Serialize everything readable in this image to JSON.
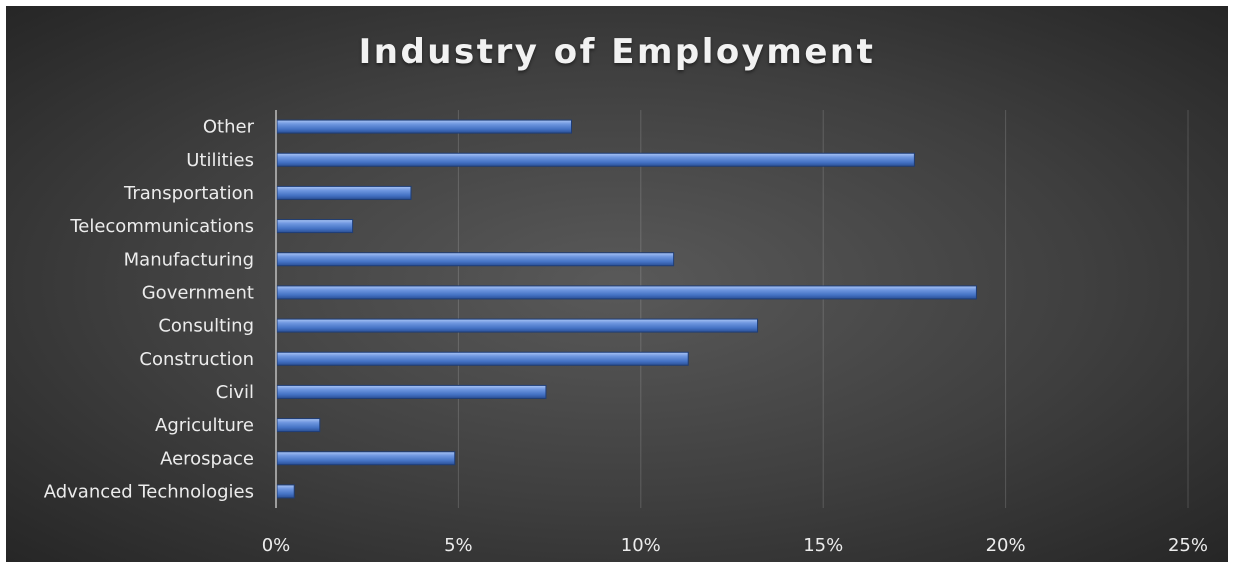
{
  "chart_data": {
    "type": "bar",
    "orientation": "horizontal",
    "title": "Industry of Employment",
    "categories": [
      "Advanced Technologies",
      "Aerospace",
      "Agriculture",
      "Civil",
      "Construction",
      "Consulting",
      "Government",
      "Manufacturing",
      "Telecommunications",
      "Transportation",
      "Utilities",
      "Other"
    ],
    "values": [
      0.5,
      4.9,
      1.2,
      7.4,
      11.3,
      13.2,
      19.2,
      10.9,
      2.1,
      3.7,
      17.5,
      8.1
    ],
    "xlim": [
      0,
      25
    ],
    "ticks": [
      0,
      5,
      10,
      15,
      20,
      25
    ],
    "tick_labels": [
      "0%",
      "5%",
      "10%",
      "15%",
      "20%",
      "25%"
    ],
    "xlabel": "",
    "ylabel": "",
    "grid": true,
    "bar_color": "#4472C4",
    "background_color": "#404040"
  }
}
